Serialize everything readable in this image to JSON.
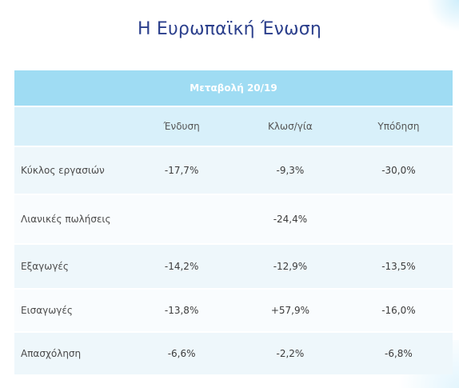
{
  "title": "Η Ευρωπαϊκή Ένωση",
  "table": {
    "banner": "Μεταβολή 20/19",
    "columns": [
      "",
      "Ένδυση",
      "Κλωσ/γία",
      "Υπόδηση"
    ],
    "rows": [
      {
        "label": "Κύκλος εργασιών",
        "values": [
          "-17,7%",
          "-9,3%",
          "-30,0%"
        ]
      },
      {
        "label": "Λιανικές πωλήσεις",
        "values": [
          "",
          "-24,4%",
          ""
        ]
      },
      {
        "label": "Εξαγωγές",
        "values": [
          "-14,2%",
          "-12,9%",
          "-13,5%"
        ]
      },
      {
        "label": "Εισαγωγές",
        "values": [
          "-13,8%",
          "+57,9%",
          "-16,0%"
        ]
      },
      {
        "label": "Απασχόληση",
        "values": [
          "-6,6%",
          "-2,2%",
          "-6,8%"
        ]
      }
    ]
  },
  "colors": {
    "title": "#2b3f8c",
    "banner": "#9fdcf3",
    "header_row": "#d8f0fa"
  }
}
